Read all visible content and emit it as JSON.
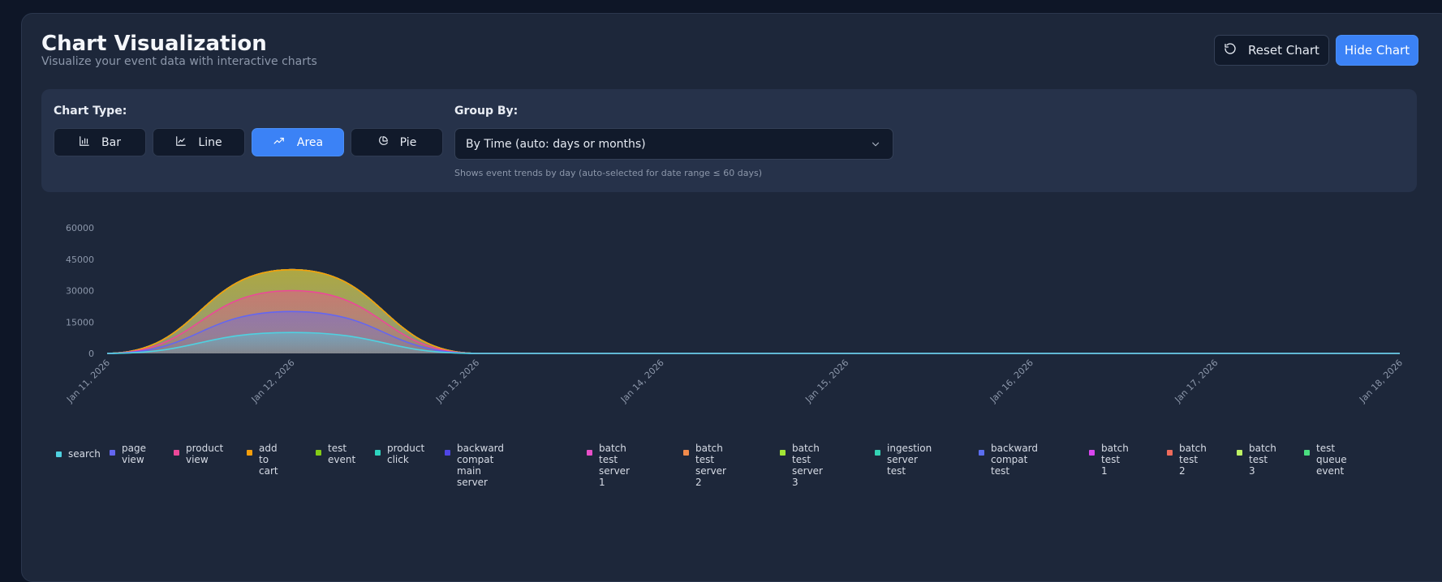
{
  "header": {
    "title": "Chart Visualization",
    "subtitle": "Visualize your event data with interactive charts",
    "reset_label": "Reset Chart",
    "hide_label": "Hide Chart"
  },
  "controls": {
    "chart_type_label": "Chart Type:",
    "chart_types": [
      {
        "label": "Bar",
        "icon": "bar-chart-icon",
        "active": false
      },
      {
        "label": "Line",
        "icon": "line-chart-icon",
        "active": false
      },
      {
        "label": "Area",
        "icon": "area-chart-icon",
        "active": true
      },
      {
        "label": "Pie",
        "icon": "pie-chart-icon",
        "active": false
      }
    ],
    "group_by_label": "Group By:",
    "group_by_value": "By Time (auto: days or months)",
    "group_by_hint": "Shows event trends by day (auto-selected for date range ≤ 60 days)"
  },
  "chart_data": {
    "type": "area",
    "stacked": true,
    "x": [
      "Jan 11, 2026",
      "Jan 12, 2026",
      "Jan 13, 2026",
      "Jan 14, 2026",
      "Jan 15, 2026",
      "Jan 16, 2026",
      "Jan 17, 2026",
      "Jan 18, 2026"
    ],
    "yticks": [
      0,
      15000,
      30000,
      45000,
      60000
    ],
    "ylim": [
      0,
      60000
    ],
    "series": [
      {
        "name": "search",
        "color": "#4fd1e0",
        "values": [
          0,
          10000,
          0,
          0,
          0,
          0,
          0,
          0
        ]
      },
      {
        "name": "page view",
        "color": "#6366f1",
        "values": [
          0,
          10000,
          0,
          0,
          0,
          0,
          0,
          0
        ]
      },
      {
        "name": "product view",
        "color": "#ec4899",
        "values": [
          0,
          10000,
          0,
          0,
          0,
          0,
          0,
          0
        ]
      },
      {
        "name": "add to cart",
        "color": "#f59e0b",
        "values": [
          0,
          10000,
          0,
          0,
          0,
          0,
          0,
          0
        ]
      },
      {
        "name": "test event",
        "color": "#84cc16",
        "values": [
          0,
          0,
          0,
          0,
          0,
          0,
          0,
          0
        ]
      },
      {
        "name": "product click",
        "color": "#2dd4bf",
        "values": [
          0,
          0,
          0,
          0,
          0,
          0,
          0,
          0
        ]
      },
      {
        "name": "backward compat main server",
        "color": "#4f46e5",
        "values": [
          0,
          0,
          0,
          0,
          0,
          0,
          0,
          0
        ]
      },
      {
        "name": "batch test server 1",
        "color": "#e84fc8",
        "values": [
          0,
          0,
          0,
          0,
          0,
          0,
          0,
          0
        ]
      },
      {
        "name": "batch test server 2",
        "color": "#f08a4b",
        "values": [
          0,
          0,
          0,
          0,
          0,
          0,
          0,
          0
        ]
      },
      {
        "name": "batch test server 3",
        "color": "#a3e635",
        "values": [
          0,
          0,
          0,
          0,
          0,
          0,
          0,
          0
        ]
      },
      {
        "name": "ingestion server test",
        "color": "#34d3b4",
        "values": [
          0,
          0,
          0,
          0,
          0,
          0,
          0,
          0
        ]
      },
      {
        "name": "backward compat test",
        "color": "#5b6ef0",
        "values": [
          0,
          0,
          0,
          0,
          0,
          0,
          0,
          0
        ]
      },
      {
        "name": "batch test 1",
        "color": "#d946ef",
        "values": [
          0,
          0,
          0,
          0,
          0,
          0,
          0,
          0
        ]
      },
      {
        "name": "batch test 2",
        "color": "#ef6b5b",
        "values": [
          0,
          0,
          0,
          0,
          0,
          0,
          0,
          0
        ]
      },
      {
        "name": "batch test 3",
        "color": "#bef264",
        "values": [
          0,
          0,
          0,
          0,
          0,
          0,
          0,
          0
        ]
      },
      {
        "name": "test queue event",
        "color": "#4ade80",
        "values": [
          0,
          0,
          0,
          0,
          0,
          0,
          0,
          0
        ]
      }
    ],
    "grid": false,
    "legend_position": "bottom"
  }
}
